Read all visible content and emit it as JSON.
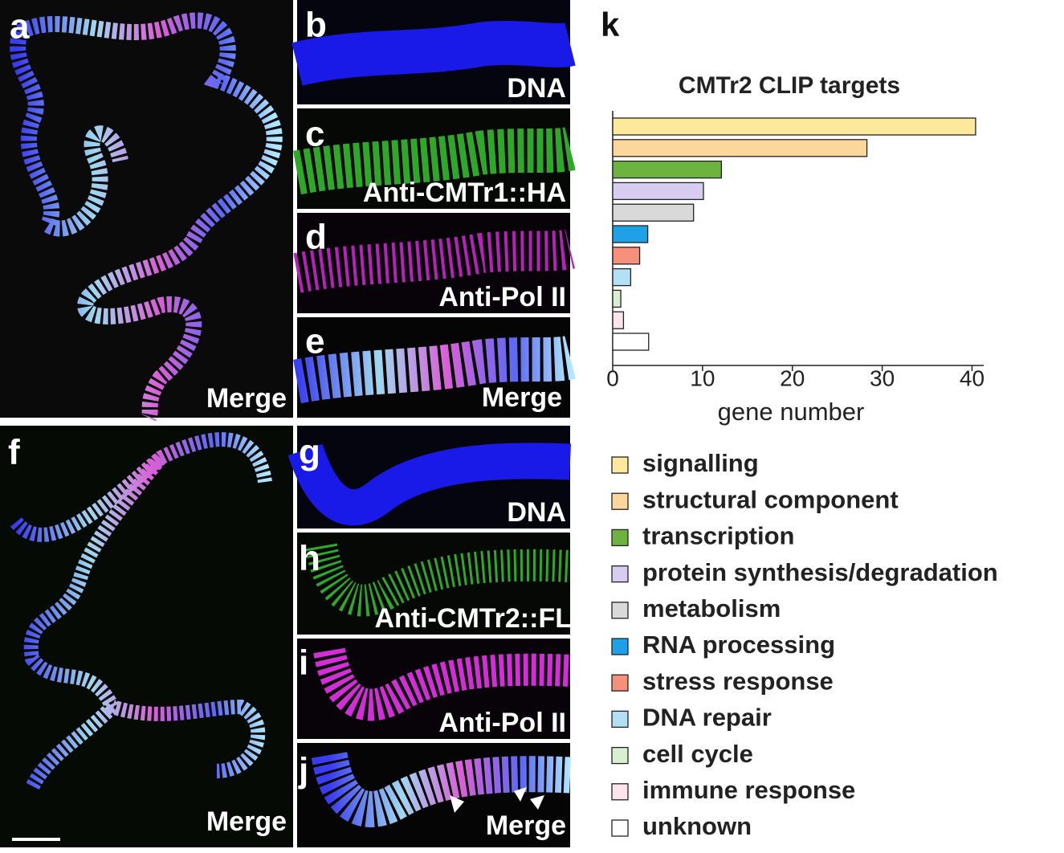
{
  "panels": [
    {
      "label": "a",
      "caption": "Merge"
    },
    {
      "label": "b",
      "caption": "DNA"
    },
    {
      "label": "c",
      "caption": "Anti-CMTr1::HA"
    },
    {
      "label": "d",
      "caption": "Anti-Pol II"
    },
    {
      "label": "e",
      "caption": "Merge"
    },
    {
      "label": "f",
      "caption": "Merge"
    },
    {
      "label": "g",
      "caption": "DNA"
    },
    {
      "label": "h",
      "caption": "Anti-CMTr2::FL"
    },
    {
      "label": "i",
      "caption": "Anti-Pol II"
    },
    {
      "label": "j",
      "caption": "Merge"
    }
  ],
  "chart_data": {
    "type": "barh",
    "panel_label": "k",
    "title": "CMTr2 CLIP targets",
    "x_label": "gene number",
    "categories": [
      "signalling",
      "structural component",
      "transcription",
      "protein synthesis/degradation",
      "metabolism",
      "RNA processing",
      "stress response",
      "DNA repair",
      "cell cycle",
      "immune response",
      "unknown"
    ],
    "values": [
      40.4,
      28.3,
      12.1,
      10.1,
      9,
      3.9,
      3,
      2,
      0.9,
      1.2,
      4
    ],
    "colors": [
      "#fde99b",
      "#fbd79b",
      "#6cb33f",
      "#d6cdf0",
      "#d9d9d9",
      "#1ea1e6",
      "#f6907a",
      "#b3e0f5",
      "#d8f0cf",
      "#fce4ec",
      "#ffffff"
    ],
    "xlim": [
      0,
      41.3
    ],
    "xticks": [
      0,
      10,
      20,
      30,
      40
    ]
  }
}
